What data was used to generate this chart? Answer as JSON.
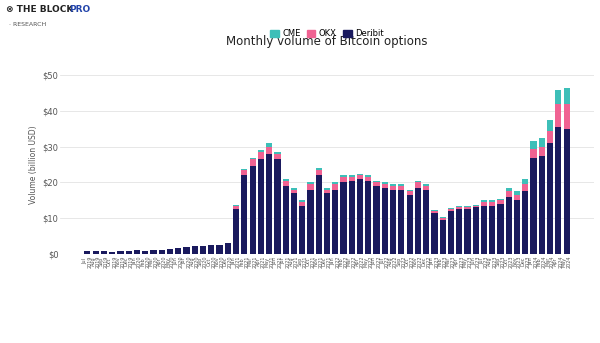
{
  "title": "Monthly volume of Bitcoin options",
  "ylabel": "Volume (billion USD)",
  "legend_labels": [
    "CME",
    "OKX",
    "Deribit"
  ],
  "cme_color": "#3dbfb8",
  "okx_color": "#f06292",
  "deribit_color": "#1a1a5e",
  "background_color": "#ffffff",
  "plot_bg_color": "#ffffff",
  "ylim": [
    0,
    50
  ],
  "yticks": [
    0,
    10,
    20,
    30,
    40,
    50
  ],
  "ytick_labels": [
    "$0",
    "$10",
    "$20",
    "$30",
    "$40",
    "$50"
  ],
  "months": [
    "Jul\n2019",
    "Aug\n2019",
    "Sep\n2019",
    "Oct\n2019",
    "Nov\n2019",
    "Dec\n2019",
    "Jan\n2020",
    "Feb\n2020",
    "Mar\n2020",
    "Apr\n2020",
    "May\n2020",
    "Jun\n2020",
    "Jul\n2020",
    "Aug\n2020",
    "Sep\n2020",
    "Oct\n2020",
    "Nov\n2020",
    "Dec\n2020",
    "Jan\n2021",
    "Feb\n2021",
    "Mar\n2021",
    "Apr\n2021",
    "May\n2021",
    "Jun\n2021",
    "Jul\n2021",
    "Aug\n2021",
    "Sep\n2021",
    "Oct\n2021",
    "Nov\n2021",
    "Dec\n2021",
    "Jan\n2022",
    "Feb\n2022",
    "Mar\n2022",
    "Apr\n2022",
    "May\n2022",
    "Jun\n2022",
    "Jul\n2022",
    "Aug\n2022",
    "Sep\n2022",
    "Oct\n2022",
    "Nov\n2022",
    "Dec\n2022",
    "Jan\n2023",
    "Feb\n2023",
    "Mar\n2023",
    "Apr\n2023",
    "May\n2023",
    "Jun\n2023",
    "Jul\n2023",
    "Aug\n2023",
    "Sep\n2023",
    "Oct\n2023",
    "Nov\n2023",
    "Dec\n2023",
    "Jan\n2024",
    "Feb\n2024",
    "Mar\n2024",
    "Apr\n2024",
    "May\n2024"
  ],
  "deribit": [
    0.7,
    0.8,
    0.7,
    0.6,
    0.8,
    0.9,
    1.0,
    0.9,
    1.1,
    1.2,
    1.4,
    1.6,
    1.9,
    2.1,
    2.3,
    2.4,
    2.6,
    2.9,
    12.5,
    22.0,
    24.5,
    26.5,
    28.0,
    26.5,
    19.0,
    17.0,
    13.5,
    18.0,
    22.0,
    17.0,
    18.0,
    20.0,
    20.5,
    21.0,
    20.5,
    19.0,
    18.5,
    18.0,
    18.0,
    16.5,
    18.5,
    18.0,
    11.5,
    9.5,
    12.0,
    12.5,
    12.5,
    13.0,
    13.5,
    13.5,
    14.0,
    16.0,
    15.0,
    17.5,
    27.0,
    27.5,
    31.0,
    35.5,
    35.0
  ],
  "okx": [
    0.0,
    0.0,
    0.0,
    0.0,
    0.0,
    0.0,
    0.0,
    0.0,
    0.0,
    0.0,
    0.0,
    0.0,
    0.0,
    0.0,
    0.0,
    0.0,
    0.0,
    0.0,
    1.0,
    1.5,
    2.0,
    2.0,
    2.0,
    1.5,
    1.5,
    1.0,
    1.0,
    1.5,
    1.5,
    1.0,
    1.5,
    1.5,
    1.0,
    1.0,
    1.0,
    1.0,
    1.0,
    1.0,
    1.0,
    1.0,
    1.5,
    1.0,
    0.5,
    0.5,
    0.5,
    0.5,
    0.5,
    0.5,
    1.0,
    1.0,
    1.0,
    1.5,
    1.5,
    2.0,
    2.5,
    2.5,
    3.5,
    6.5,
    7.0
  ],
  "cme": [
    0.0,
    0.0,
    0.0,
    0.0,
    0.0,
    0.0,
    0.0,
    0.0,
    0.0,
    0.0,
    0.0,
    0.0,
    0.0,
    0.0,
    0.0,
    0.0,
    0.0,
    0.0,
    0.2,
    0.3,
    0.5,
    0.5,
    1.0,
    0.5,
    0.5,
    0.5,
    0.5,
    0.5,
    0.5,
    0.5,
    0.5,
    0.5,
    0.5,
    0.5,
    0.5,
    0.5,
    0.5,
    0.5,
    0.5,
    0.5,
    0.5,
    0.5,
    0.3,
    0.3,
    0.3,
    0.3,
    0.3,
    0.3,
    0.5,
    0.5,
    0.5,
    1.0,
    1.0,
    1.5,
    2.0,
    2.5,
    3.0,
    4.0,
    4.5
  ]
}
